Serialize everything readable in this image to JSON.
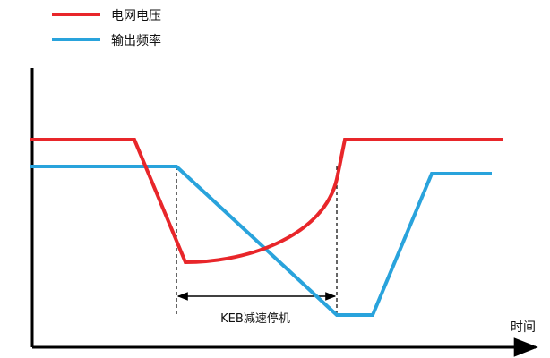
{
  "legend": {
    "items": [
      {
        "label": "电网电压",
        "color": "#e8262a"
      },
      {
        "label": "输出频率",
        "color": "#29a3dc"
      }
    ]
  },
  "axes": {
    "x_label": "时间"
  },
  "annotation": {
    "label": "KEB减速停机"
  },
  "colors": {
    "axis": "#000000",
    "guide": "#000000"
  }
}
